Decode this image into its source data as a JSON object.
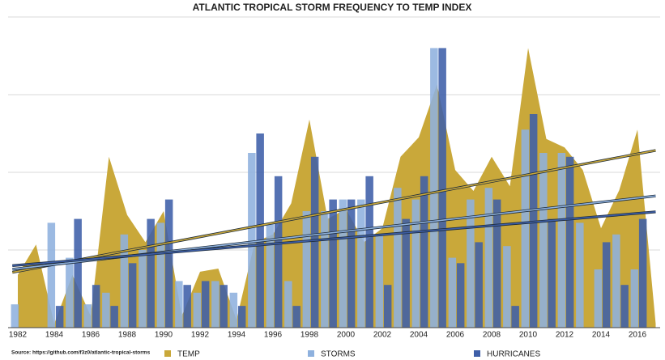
{
  "chart_data": {
    "type": "bar-area",
    "title": "ATLANTIC TROPICAL STORM FREQUENCY TO TEMP INDEX",
    "source": "Source: https://github.com/f3z0/atlantic-tropical-storms",
    "categories": [
      "1982",
      null,
      "1984",
      null,
      "1986",
      null,
      "1988",
      null,
      "1990",
      null,
      "1992",
      null,
      "1994",
      null,
      "1996",
      null,
      "1998",
      null,
      "2000",
      null,
      "2002",
      null,
      "2004",
      null,
      "2006",
      null,
      "2008",
      null,
      "2010",
      null,
      "2012",
      null,
      "2014",
      null,
      "2016",
      null
    ],
    "series": [
      {
        "name": "TEMP",
        "color": "#c9a83a",
        "kind": "area",
        "values": [
          0.68,
          1.07,
          0.05,
          0.68,
          0.15,
          2.2,
          1.45,
          1.1,
          1.5,
          0.15,
          0.72,
          0.76,
          0.1,
          1.1,
          1.2,
          1.6,
          2.68,
          1.4,
          1.53,
          1.1,
          1.28,
          2.2,
          2.45,
          3.13,
          2.03,
          1.76,
          2.2,
          1.82,
          3.6,
          2.43,
          2.32,
          2.03,
          1.28,
          1.77,
          2.55,
          0.05
        ]
      },
      {
        "name": "STORMS",
        "color": "#8eb1de",
        "kind": "bar",
        "values": [
          0.3,
          0,
          1.35,
          0.9,
          0.3,
          0.45,
          1.2,
          1.0,
          1.35,
          0.6,
          0.45,
          0.6,
          0.45,
          2.25,
          1.35,
          0.6,
          1.5,
          1.5,
          1.65,
          1.65,
          1.2,
          1.8,
          1.65,
          3.6,
          0.9,
          1.65,
          1.8,
          1.05,
          2.55,
          2.25,
          2.25,
          1.35,
          0.75,
          1.2,
          0.75,
          0
        ]
      },
      {
        "name": "HURRICANES",
        "color": "#3e5fa8",
        "kind": "bar",
        "values": [
          0,
          0,
          0.28,
          1.4,
          0.55,
          0.28,
          0.83,
          1.4,
          1.65,
          0.55,
          0.6,
          0.55,
          0.28,
          2.5,
          1.95,
          0.28,
          2.2,
          1.65,
          1.65,
          1.95,
          0.55,
          1.4,
          1.95,
          3.6,
          0.83,
          1.1,
          1.65,
          0.28,
          2.75,
          1.4,
          2.2,
          0,
          1.1,
          0.55,
          1.4,
          0
        ]
      }
    ],
    "trendlines": true,
    "ylim": [
      0,
      4
    ],
    "yticks": [
      0,
      1,
      2,
      3,
      4
    ],
    "grid": true,
    "legend": "bottom"
  }
}
